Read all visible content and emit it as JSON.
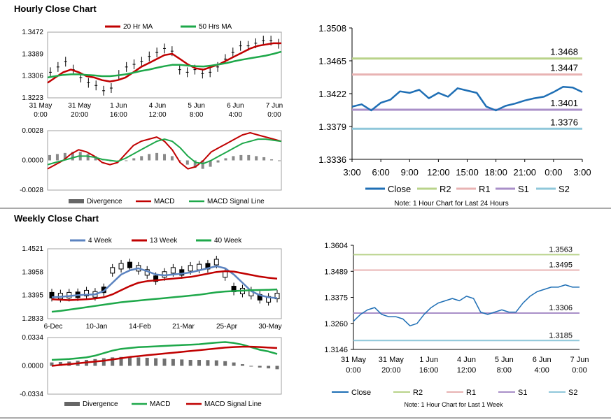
{
  "sections": {
    "hourly_title": "Hourly Close Chart",
    "weekly_title": "Weekly Close Chart"
  },
  "colors": {
    "red": "#c00000",
    "green": "#1ea84a",
    "blue": "#1f6fb5",
    "steelblue": "#5b83c0",
    "gray": "#808080",
    "r2": "#b9d38a",
    "r1": "#e8b3b3",
    "s1": "#a98fc8",
    "s2": "#8fc7da"
  },
  "chart_data": [
    {
      "id": "hourly_price",
      "type": "line",
      "legend": [
        "20 Hr MA",
        "50 Hrs MA"
      ],
      "y_ticks": [
        "1.3472",
        "1.3389",
        "1.3306",
        "1.3223"
      ],
      "x_ticks": [
        [
          "31 May",
          "0:00"
        ],
        [
          "31 May",
          "20:00"
        ],
        [
          "1 Jun",
          "16:00"
        ],
        [
          "4 Jun",
          "12:00"
        ],
        [
          "5 Jun",
          "8:00"
        ],
        [
          "6 Jun",
          "4:00"
        ],
        [
          "7 Jun",
          "0:00"
        ]
      ],
      "ylim": [
        1.3223,
        1.3472
      ],
      "series": [
        {
          "name": "Close",
          "values": [
            1.332,
            1.334,
            1.336,
            1.333,
            1.33,
            1.328,
            1.327,
            1.325,
            1.326,
            1.331,
            1.334,
            1.335,
            1.336,
            1.338,
            1.3395,
            1.341,
            1.34,
            1.333,
            1.332,
            1.333,
            1.3315,
            1.332,
            1.334,
            1.337,
            1.3395,
            1.342,
            1.342,
            1.343,
            1.344,
            1.344,
            1.3428
          ]
        },
        {
          "name": "20 Hr MA",
          "values": [
            1.328,
            1.33,
            1.332,
            1.333,
            1.332,
            1.3305,
            1.33,
            1.329,
            1.3285,
            1.329,
            1.33,
            1.332,
            1.334,
            1.3355,
            1.337,
            1.3385,
            1.339,
            1.337,
            1.335,
            1.3335,
            1.333,
            1.334,
            1.335,
            1.3365,
            1.338,
            1.3395,
            1.341,
            1.342,
            1.3425,
            1.343,
            1.343
          ]
        },
        {
          "name": "50 Hrs MA",
          "values": [
            1.33,
            1.3305,
            1.331,
            1.3312,
            1.3312,
            1.331,
            1.3308,
            1.3305,
            1.3305,
            1.3308,
            1.3312,
            1.3318,
            1.3325,
            1.333,
            1.3337,
            1.3343,
            1.3348,
            1.3348,
            1.3345,
            1.3343,
            1.3342,
            1.3345,
            1.335,
            1.3355,
            1.3362,
            1.3368,
            1.3373,
            1.3378,
            1.3383,
            1.339,
            1.3398
          ]
        }
      ]
    },
    {
      "id": "hourly_macd",
      "type": "bar",
      "legend": [
        "Divergence",
        "MACD",
        "MACD Signal Line"
      ],
      "y_ticks": [
        "0.0028",
        "0.0000",
        "-0.0028"
      ],
      "ylim": [
        -0.0028,
        0.0028
      ],
      "series": [
        {
          "name": "Divergence",
          "values": [
            0.0005,
            0.0006,
            0.0007,
            0.0008,
            0.0008,
            0.0006,
            0.0004,
            0.0001,
            -0.0001,
            -0.0001,
            0.0,
            0.0002,
            0.0004,
            0.0006,
            0.0007,
            0.0006,
            0.0004,
            0.0,
            -0.0004,
            -0.0007,
            -0.0008,
            -0.0006,
            -0.0002,
            0.0002,
            0.0004,
            0.0005,
            0.0005,
            0.0004,
            0.0003,
            0.0001,
            0.0
          ]
        },
        {
          "name": "MACD",
          "values": [
            -0.0008,
            -0.0004,
            0.0,
            0.0006,
            0.001,
            0.0008,
            0.0004,
            -0.0002,
            -0.0004,
            -0.0002,
            0.0006,
            0.0014,
            0.0018,
            0.002,
            0.0022,
            0.0018,
            0.001,
            -0.0002,
            -0.0008,
            -0.0006,
            0.0,
            0.0008,
            0.0012,
            0.0016,
            0.002,
            0.0024,
            0.0026,
            0.0024,
            0.0022,
            0.002,
            0.0018
          ]
        },
        {
          "name": "MACD Signal Line",
          "values": [
            -0.0004,
            -0.0002,
            0.0,
            0.0002,
            0.0004,
            0.0004,
            0.0003,
            0.0001,
            0.0,
            -0.0001,
            0.0002,
            0.0006,
            0.001,
            0.0014,
            0.0018,
            0.002,
            0.0018,
            0.0012,
            0.0004,
            -0.0002,
            -0.0003,
            0.0,
            0.0004,
            0.0008,
            0.0012,
            0.0016,
            0.0018,
            0.002,
            0.002,
            0.0019,
            0.0018
          ]
        }
      ]
    },
    {
      "id": "intraday_levels",
      "type": "line",
      "y_ticks": [
        "1.3508",
        "1.3465",
        "1.3422",
        "1.3379",
        "1.3336"
      ],
      "x_ticks": [
        "3:00",
        "6:00",
        "9:00",
        "12:00",
        "15:00",
        "18:00",
        "21:00",
        "0:00",
        "3:00"
      ],
      "ylim": [
        1.3336,
        1.3508
      ],
      "levels": [
        {
          "name": "R2",
          "value": 1.3468,
          "label": "1.3468"
        },
        {
          "name": "R1",
          "value": 1.3447,
          "label": "1.3447"
        },
        {
          "name": "S1",
          "value": 1.3401,
          "label": "1.3401"
        },
        {
          "name": "S2",
          "value": 1.3376,
          "label": "1.3376"
        }
      ],
      "series": [
        {
          "name": "Close",
          "values": [
            1.3405,
            1.3408,
            1.34,
            1.341,
            1.3414,
            1.3425,
            1.3423,
            1.3427,
            1.3416,
            1.3423,
            1.3418,
            1.3429,
            1.3426,
            1.3423,
            1.3405,
            1.34,
            1.3406,
            1.3409,
            1.3413,
            1.3416,
            1.3418,
            1.3424,
            1.3431,
            1.343,
            1.3424
          ]
        }
      ],
      "legend": [
        "Close",
        "R2",
        "R1",
        "S1",
        "S2"
      ],
      "note": "Note: 1 Hour Chart for Last 24 Hours"
    },
    {
      "id": "weekly_price",
      "type": "line",
      "legend": [
        "4 Week",
        "13 Week",
        "40 Week"
      ],
      "y_ticks": [
        "1.4521",
        "1.3958",
        "1.3395",
        "1.2833"
      ],
      "x_ticks": [
        "6-Dec",
        "10-Jan",
        "14-Feb",
        "21-Mar",
        "25-Apr",
        "30-May"
      ],
      "ylim": [
        1.2833,
        1.4521
      ],
      "series": [
        {
          "name": "Close",
          "values": [
            1.34,
            1.338,
            1.34,
            1.341,
            1.345,
            1.342,
            1.353,
            1.4,
            1.41,
            1.413,
            1.405,
            1.395,
            1.38,
            1.39,
            1.4,
            1.395,
            1.405,
            1.408,
            1.41,
            1.42,
            1.39,
            1.355,
            1.35,
            1.345,
            1.335,
            1.33,
            1.338
          ]
        },
        {
          "name": "4 Week",
          "values": [
            1.335,
            1.336,
            1.338,
            1.34,
            1.341,
            1.342,
            1.35,
            1.37,
            1.39,
            1.4,
            1.405,
            1.398,
            1.39,
            1.388,
            1.39,
            1.392,
            1.395,
            1.4,
            1.405,
            1.41,
            1.405,
            1.39,
            1.37,
            1.35,
            1.34,
            1.335,
            1.333
          ]
        },
        {
          "name": "13 Week",
          "values": [
            1.33,
            1.329,
            1.328,
            1.329,
            1.33,
            1.332,
            1.335,
            1.342,
            1.352,
            1.362,
            1.37,
            1.374,
            1.376,
            1.378,
            1.38,
            1.382,
            1.384,
            1.388,
            1.392,
            1.396,
            1.398,
            1.397,
            1.393,
            1.389,
            1.385,
            1.382,
            1.38
          ]
        },
        {
          "name": "40 Week",
          "values": [
            1.3,
            1.302,
            1.305,
            1.308,
            1.311,
            1.314,
            1.317,
            1.32,
            1.323,
            1.325,
            1.327,
            1.329,
            1.331,
            1.333,
            1.335,
            1.337,
            1.339,
            1.341,
            1.344,
            1.347,
            1.349,
            1.35,
            1.351,
            1.352,
            1.3525,
            1.353,
            1.354
          ]
        }
      ]
    },
    {
      "id": "weekly_macd",
      "type": "bar",
      "legend": [
        "Divergence",
        "MACD",
        "MACD Signal Line"
      ],
      "y_ticks": [
        "0.0334",
        "0.0000",
        "-0.0334"
      ],
      "ylim": [
        -0.0334,
        0.0334
      ],
      "series": [
        {
          "name": "Divergence",
          "values": [
            0.004,
            0.0045,
            0.005,
            0.006,
            0.007,
            0.008,
            0.009,
            0.01,
            0.0105,
            0.0105,
            0.01,
            0.0095,
            0.009,
            0.0085,
            0.008,
            0.0075,
            0.007,
            0.007,
            0.0068,
            0.0065,
            0.0055,
            0.004,
            0.002,
            0.0,
            -0.002,
            -0.003,
            -0.004
          ]
        },
        {
          "name": "MACD",
          "values": [
            0.007,
            0.0075,
            0.008,
            0.009,
            0.01,
            0.012,
            0.015,
            0.018,
            0.02,
            0.021,
            0.022,
            0.0225,
            0.023,
            0.0235,
            0.024,
            0.0245,
            0.025,
            0.0255,
            0.0265,
            0.0275,
            0.028,
            0.027,
            0.025,
            0.022,
            0.019,
            0.017,
            0.014
          ]
        },
        {
          "name": "MACD Signal Line",
          "values": [
            0.0,
            0.001,
            0.002,
            0.003,
            0.004,
            0.005,
            0.006,
            0.0075,
            0.009,
            0.0105,
            0.0115,
            0.0125,
            0.0135,
            0.0145,
            0.0155,
            0.0165,
            0.0175,
            0.0185,
            0.0195,
            0.0205,
            0.0215,
            0.0222,
            0.0226,
            0.0226,
            0.0222,
            0.0215,
            0.021
          ]
        }
      ]
    },
    {
      "id": "weekly_levels",
      "type": "line",
      "y_ticks": [
        "1.3604",
        "1.3489",
        "1.3375",
        "1.3260",
        "1.3146"
      ],
      "x_ticks": [
        [
          "31 May",
          "0:00"
        ],
        [
          "31 May",
          "20:00"
        ],
        [
          "1 Jun",
          "16:00"
        ],
        [
          "4 Jun",
          "12:00"
        ],
        [
          "5 Jun",
          "8:00"
        ],
        [
          "6 Jun",
          "4:00"
        ],
        [
          "7 Jun",
          "0:00"
        ]
      ],
      "ylim": [
        1.3146,
        1.3604
      ],
      "levels": [
        {
          "name": "R2",
          "value": 1.3563,
          "label": "1.3563"
        },
        {
          "name": "R1",
          "value": 1.3495,
          "label": "1.3495"
        },
        {
          "name": "S1",
          "value": 1.3306,
          "label": "1.3306"
        },
        {
          "name": "S2",
          "value": 1.3185,
          "label": "1.3185"
        }
      ],
      "series": [
        {
          "name": "Close",
          "values": [
            1.327,
            1.33,
            1.332,
            1.333,
            1.33,
            1.329,
            1.329,
            1.328,
            1.325,
            1.326,
            1.33,
            1.333,
            1.335,
            1.336,
            1.337,
            1.336,
            1.338,
            1.337,
            1.331,
            1.33,
            1.331,
            1.332,
            1.331,
            1.331,
            1.335,
            1.338,
            1.34,
            1.341,
            1.342,
            1.342,
            1.343,
            1.342,
            1.342
          ]
        }
      ],
      "legend": [
        "Close",
        "R2",
        "R1",
        "S1",
        "S2"
      ],
      "note": "Note: 1 Hour Chart for Last 1 Week"
    }
  ]
}
